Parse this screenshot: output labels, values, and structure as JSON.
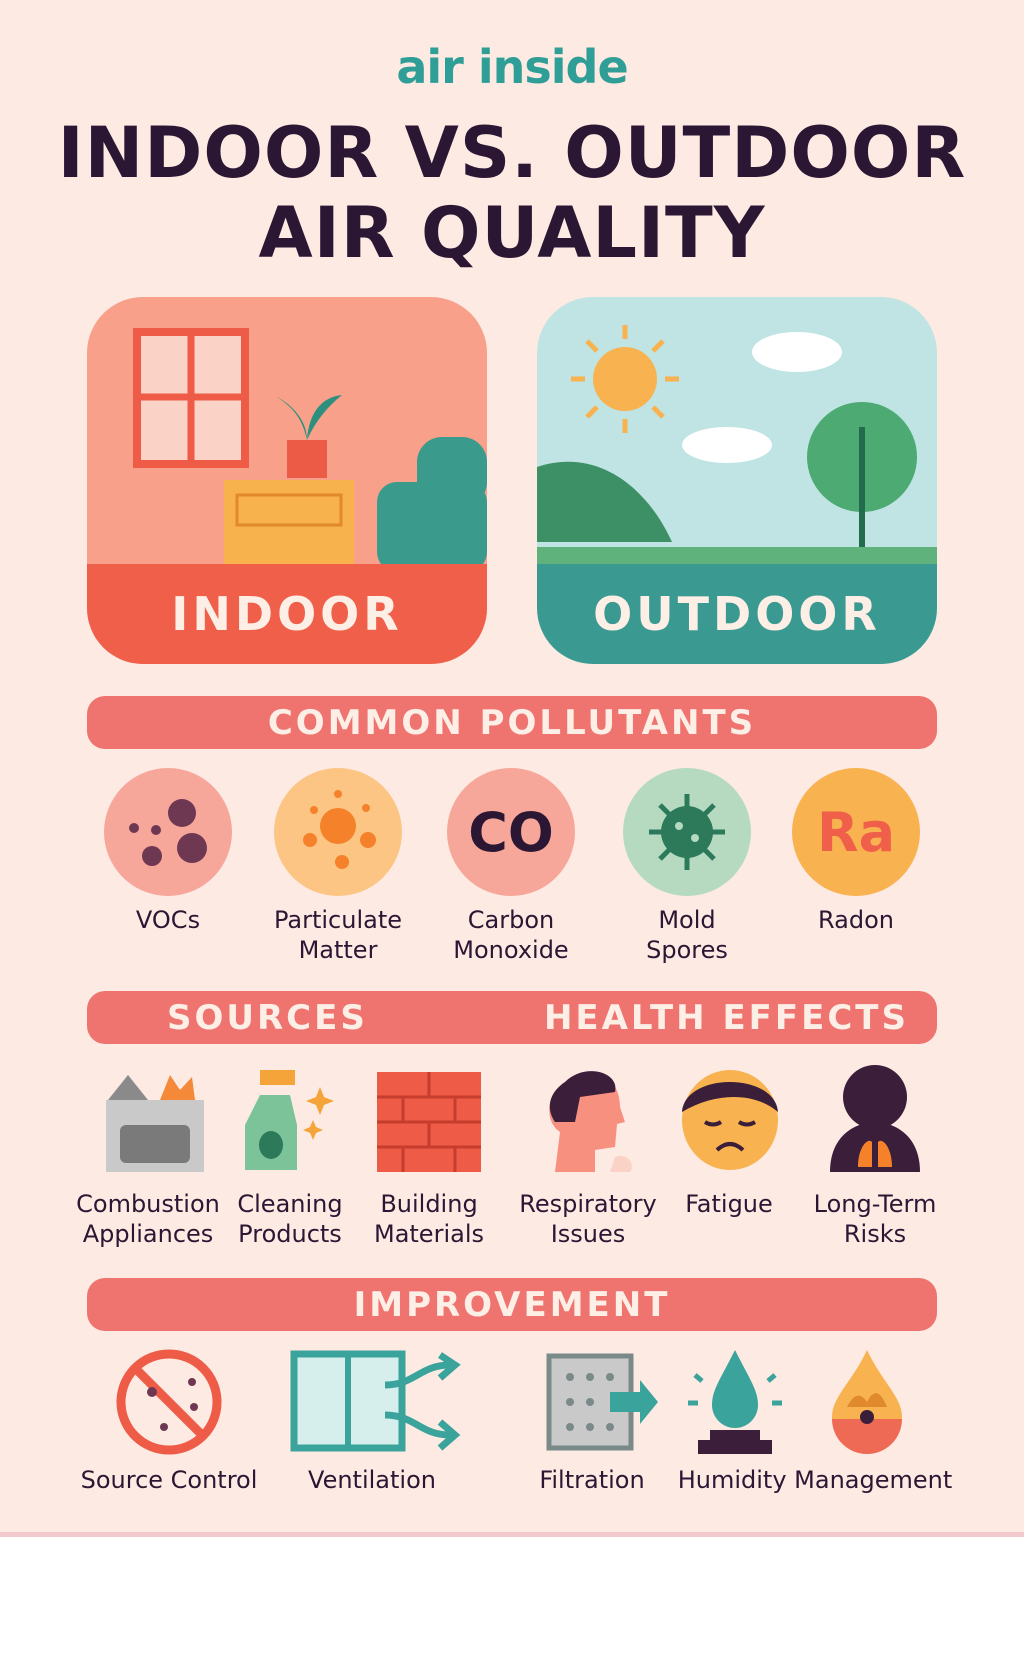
{
  "brand": "air inside",
  "title": {
    "line1": "INDOOR VS. OUTDOOR",
    "line2": "AIR QUALITY"
  },
  "cards": {
    "indoor": "INDOOR",
    "outdoor": "OUTDOOR"
  },
  "colors": {
    "accent": "#ef7470",
    "teal": "#2f9e97",
    "dark": "#2b1734",
    "background": "#fdeae3"
  },
  "pollutants": {
    "heading": "COMMON POLLUTANTS",
    "items": [
      {
        "line1": "VOCs",
        "line2": "",
        "icon": "dots-icon"
      },
      {
        "line1": "Particulate",
        "line2": "Matter",
        "icon": "particles-icon"
      },
      {
        "line1": "Carbon",
        "line2": "Monoxide",
        "icon": "co-icon",
        "symbol": "CO"
      },
      {
        "line1": "Mold",
        "line2": "Spores",
        "icon": "spore-icon"
      },
      {
        "line1": "Radon",
        "line2": "",
        "icon": "ra-icon",
        "symbol": "Ra"
      }
    ]
  },
  "sources": {
    "heading": "SOURCES",
    "items": [
      {
        "line1": "Combustion",
        "line2": "Appliances"
      },
      {
        "line1": "Cleaning",
        "line2": "Products"
      },
      {
        "line1": "Building",
        "line2": "Materials"
      }
    ]
  },
  "health": {
    "heading": "HEALTH EFFECTS",
    "items": [
      {
        "line1": "Respiratory",
        "line2": "Issues"
      },
      {
        "line1": "Fatigue",
        "line2": ""
      },
      {
        "line1": "Long-Term",
        "line2": "Risks"
      }
    ]
  },
  "improvement": {
    "heading": "IMPROVEMENT",
    "items": [
      "Source Control",
      "Ventilation",
      "Filtration",
      "Humidity Management"
    ]
  }
}
